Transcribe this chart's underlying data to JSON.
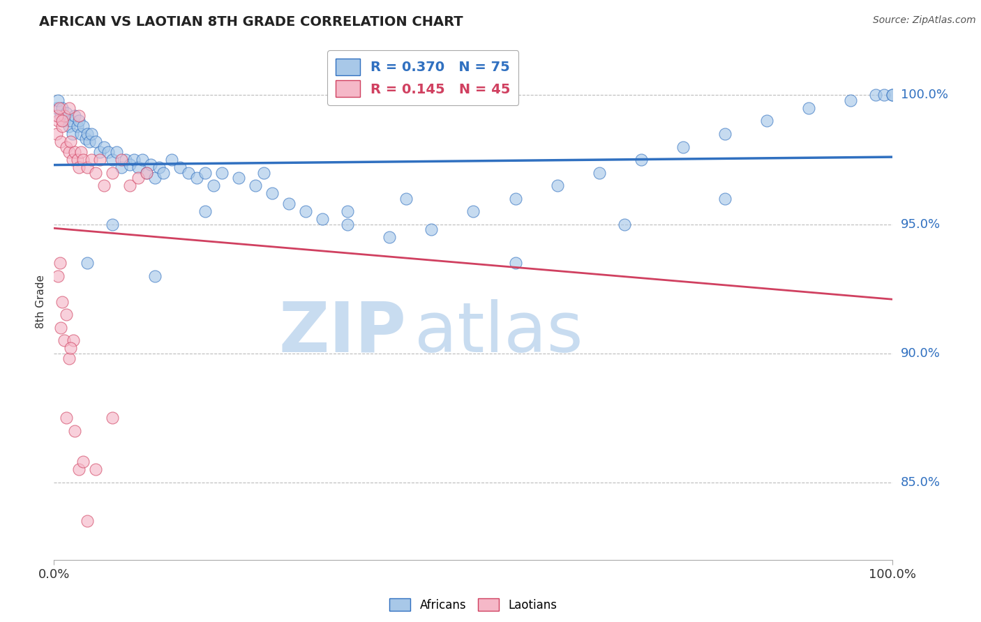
{
  "title": "AFRICAN VS LAOTIAN 8TH GRADE CORRELATION CHART",
  "source_text": "Source: ZipAtlas.com",
  "ylabel": "8th Grade",
  "yticks_right": [
    85.0,
    90.0,
    95.0,
    100.0
  ],
  "xlim": [
    0.0,
    100.0
  ],
  "ylim": [
    82.0,
    102.0
  ],
  "legend_african": "R = 0.370   N = 75",
  "legend_laotian": "R = 0.145   N = 45",
  "color_african": "#A8C8E8",
  "color_laotian": "#F5B8C8",
  "color_line_african": "#3070C0",
  "color_line_laotian": "#D04060",
  "watermark_zip": "ZIP",
  "watermark_atlas": "atlas",
  "watermark_color": "#C8DCF0",
  "background_color": "#FFFFFF",
  "grid_color": "#BBBBBB",
  "africans_x": [
    0.3,
    0.5,
    0.8,
    1.0,
    1.2,
    1.5,
    1.8,
    2.0,
    2.2,
    2.5,
    2.8,
    3.0,
    3.2,
    3.5,
    3.8,
    4.0,
    4.2,
    4.5,
    5.0,
    5.5,
    6.0,
    6.5,
    7.0,
    7.5,
    8.0,
    8.5,
    9.0,
    9.5,
    10.0,
    10.5,
    11.0,
    11.5,
    12.0,
    12.5,
    13.0,
    14.0,
    15.0,
    16.0,
    17.0,
    18.0,
    19.0,
    20.0,
    22.0,
    24.0,
    26.0,
    28.0,
    30.0,
    32.0,
    35.0,
    40.0,
    45.0,
    50.0,
    55.0,
    60.0,
    65.0,
    70.0,
    75.0,
    80.0,
    85.0,
    90.0,
    95.0,
    98.0,
    99.0,
    100.0,
    100.0,
    4.0,
    7.0,
    12.0,
    18.0,
    25.0,
    35.0,
    42.0,
    55.0,
    68.0,
    80.0
  ],
  "africans_y": [
    99.5,
    99.8,
    99.2,
    99.5,
    99.0,
    99.3,
    98.8,
    99.0,
    98.5,
    99.2,
    98.8,
    99.0,
    98.5,
    98.8,
    98.3,
    98.5,
    98.2,
    98.5,
    98.2,
    97.8,
    98.0,
    97.8,
    97.5,
    97.8,
    97.2,
    97.5,
    97.3,
    97.5,
    97.2,
    97.5,
    97.0,
    97.3,
    96.8,
    97.2,
    97.0,
    97.5,
    97.2,
    97.0,
    96.8,
    97.0,
    96.5,
    97.0,
    96.8,
    96.5,
    96.2,
    95.8,
    95.5,
    95.2,
    95.0,
    94.5,
    94.8,
    95.5,
    96.0,
    96.5,
    97.0,
    97.5,
    98.0,
    98.5,
    99.0,
    99.5,
    99.8,
    100.0,
    100.0,
    100.0,
    100.0,
    93.5,
    95.0,
    93.0,
    95.5,
    97.0,
    95.5,
    96.0,
    93.5,
    95.0,
    96.0
  ],
  "laotians_x": [
    0.3,
    0.5,
    0.8,
    1.0,
    1.2,
    1.5,
    1.8,
    2.0,
    2.2,
    2.5,
    2.8,
    3.0,
    3.2,
    3.5,
    4.0,
    4.5,
    5.0,
    5.5,
    6.0,
    7.0,
    8.0,
    9.0,
    10.0,
    11.0,
    0.8,
    1.2,
    1.8,
    2.3,
    3.0,
    4.0,
    1.0,
    1.5,
    2.0,
    0.5,
    0.7,
    1.5,
    2.5,
    3.5,
    5.0,
    7.0,
    0.4,
    0.6,
    1.0,
    1.8,
    3.0
  ],
  "laotians_y": [
    98.5,
    99.0,
    98.2,
    98.8,
    99.2,
    98.0,
    97.8,
    98.2,
    97.5,
    97.8,
    97.5,
    97.2,
    97.8,
    97.5,
    97.2,
    97.5,
    97.0,
    97.5,
    96.5,
    97.0,
    97.5,
    96.5,
    96.8,
    97.0,
    91.0,
    90.5,
    89.8,
    90.5,
    85.5,
    83.5,
    92.0,
    91.5,
    90.2,
    93.0,
    93.5,
    87.5,
    87.0,
    85.8,
    85.5,
    87.5,
    99.2,
    99.5,
    99.0,
    99.5,
    99.2
  ]
}
